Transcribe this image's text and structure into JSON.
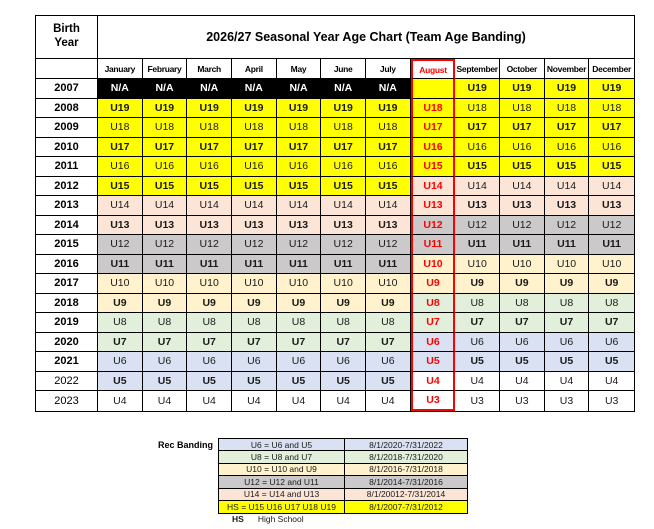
{
  "title": "2026/27 Seasonal Year Age Chart (Team Age Banding)",
  "birth_year_label": "Birth Year",
  "columns": [
    "January",
    "February",
    "March",
    "April",
    "May",
    "June",
    "July",
    "August",
    "September",
    "October",
    "November",
    "December"
  ],
  "highlight_column": "August",
  "colors": {
    "yellow": "#FFFF00",
    "pink": "#FCE4D6",
    "gray": "#CBC9C9",
    "cream": "#FFF2CC",
    "green": "#E2EFDA",
    "blue": "#D9E1F2",
    "black_band": "#000000",
    "highlight_red": "#FF0000"
  },
  "rows": [
    {
      "year": "2007",
      "year_bold": true,
      "jan_jul": {
        "text": "N/A",
        "band": "black",
        "bold": true
      },
      "aug": {
        "text": "",
        "band": "yellow"
      },
      "sep_dec": {
        "text": "U19",
        "band": "yellow",
        "bold": true
      }
    },
    {
      "year": "2008",
      "year_bold": true,
      "jan_jul": {
        "text": "U19",
        "band": "yellow",
        "bold": true
      },
      "aug": {
        "text": "U18",
        "band": "yellow"
      },
      "sep_dec": {
        "text": "U18",
        "band": "yellow",
        "bold": false
      }
    },
    {
      "year": "2009",
      "year_bold": true,
      "jan_jul": {
        "text": "U18",
        "band": "yellow",
        "bold": false
      },
      "aug": {
        "text": "U17",
        "band": "yellow"
      },
      "sep_dec": {
        "text": "U17",
        "band": "yellow",
        "bold": true
      }
    },
    {
      "year": "2010",
      "year_bold": true,
      "jan_jul": {
        "text": "U17",
        "band": "yellow",
        "bold": true
      },
      "aug": {
        "text": "U16",
        "band": "yellow"
      },
      "sep_dec": {
        "text": "U16",
        "band": "yellow",
        "bold": false
      }
    },
    {
      "year": "2011",
      "year_bold": true,
      "jan_jul": {
        "text": "U16",
        "band": "yellow",
        "bold": false
      },
      "aug": {
        "text": "U15",
        "band": "yellow"
      },
      "sep_dec": {
        "text": "U15",
        "band": "yellow",
        "bold": true
      }
    },
    {
      "year": "2012",
      "year_bold": true,
      "jan_jul": {
        "text": "U15",
        "band": "yellow",
        "bold": true
      },
      "aug": {
        "text": "U14",
        "band": "pink"
      },
      "sep_dec": {
        "text": "U14",
        "band": "pink",
        "bold": false
      }
    },
    {
      "year": "2013",
      "year_bold": true,
      "jan_jul": {
        "text": "U14",
        "band": "pink",
        "bold": false
      },
      "aug": {
        "text": "U13",
        "band": "pink"
      },
      "sep_dec": {
        "text": "U13",
        "band": "pink",
        "bold": true
      }
    },
    {
      "year": "2014",
      "year_bold": true,
      "jan_jul": {
        "text": "U13",
        "band": "pink",
        "bold": true
      },
      "aug": {
        "text": "U12",
        "band": "gray"
      },
      "sep_dec": {
        "text": "U12",
        "band": "gray",
        "bold": false
      }
    },
    {
      "year": "2015",
      "year_bold": true,
      "jan_jul": {
        "text": "U12",
        "band": "gray",
        "bold": false
      },
      "aug": {
        "text": "U11",
        "band": "gray"
      },
      "sep_dec": {
        "text": "U11",
        "band": "gray",
        "bold": true
      }
    },
    {
      "year": "2016",
      "year_bold": true,
      "jan_jul": {
        "text": "U11",
        "band": "gray",
        "bold": true
      },
      "aug": {
        "text": "U10",
        "band": "cream"
      },
      "sep_dec": {
        "text": "U10",
        "band": "cream",
        "bold": false
      }
    },
    {
      "year": "2017",
      "year_bold": true,
      "jan_jul": {
        "text": "U10",
        "band": "cream",
        "bold": false
      },
      "aug": {
        "text": "U9",
        "band": "cream"
      },
      "sep_dec": {
        "text": "U9",
        "band": "cream",
        "bold": true
      }
    },
    {
      "year": "2018",
      "year_bold": true,
      "jan_jul": {
        "text": "U9",
        "band": "cream",
        "bold": true
      },
      "aug": {
        "text": "U8",
        "band": "green"
      },
      "sep_dec": {
        "text": "U8",
        "band": "green",
        "bold": false
      }
    },
    {
      "year": "2019",
      "year_bold": true,
      "jan_jul": {
        "text": "U8",
        "band": "green",
        "bold": false
      },
      "aug": {
        "text": "U7",
        "band": "green"
      },
      "sep_dec": {
        "text": "U7",
        "band": "green",
        "bold": true
      }
    },
    {
      "year": "2020",
      "year_bold": true,
      "jan_jul": {
        "text": "U7",
        "band": "green",
        "bold": true
      },
      "aug": {
        "text": "U6",
        "band": "blue"
      },
      "sep_dec": {
        "text": "U6",
        "band": "blue",
        "bold": false
      }
    },
    {
      "year": "2021",
      "year_bold": true,
      "jan_jul": {
        "text": "U6",
        "band": "blue",
        "bold": false
      },
      "aug": {
        "text": "U5",
        "band": "blue"
      },
      "sep_dec": {
        "text": "U5",
        "band": "blue",
        "bold": true
      }
    },
    {
      "year": "2022",
      "year_bold": false,
      "jan_jul": {
        "text": "U5",
        "band": "blue",
        "bold": true
      },
      "aug": {
        "text": "U4",
        "band": "white"
      },
      "sep_dec": {
        "text": "U4",
        "band": "white",
        "bold": false
      }
    },
    {
      "year": "2023",
      "year_bold": false,
      "jan_jul": {
        "text": "U4",
        "band": "white",
        "bold": false
      },
      "aug": {
        "text": "U3",
        "band": "white"
      },
      "sep_dec": {
        "text": "U3",
        "band": "white",
        "bold": false
      }
    }
  ],
  "legend": {
    "label": "Rec Banding",
    "rows": [
      {
        "band": "blue",
        "definition": "U6 = U6 and U5",
        "dates": "8/1/2020-7/31/2022"
      },
      {
        "band": "green",
        "definition": "U8 = U8 and U7",
        "dates": "8/1/2018-7/31/2020"
      },
      {
        "band": "cream",
        "definition": "U10 = U10 and U9",
        "dates": "8/1/2016-7/31/2018"
      },
      {
        "band": "gray",
        "definition": "U12 = U12 and U11",
        "dates": "8/1/2014-7/31/2016"
      },
      {
        "band": "pink",
        "definition": "U14 = U14 and U13",
        "dates": "8/1/20012-7/31/2014"
      },
      {
        "band": "yellow",
        "definition": "HS = U15 U16 U17 U18 U19",
        "dates": "8/1/2007-7/31/2012"
      }
    ],
    "footnote_abbr": "HS",
    "footnote_text": "High School"
  }
}
